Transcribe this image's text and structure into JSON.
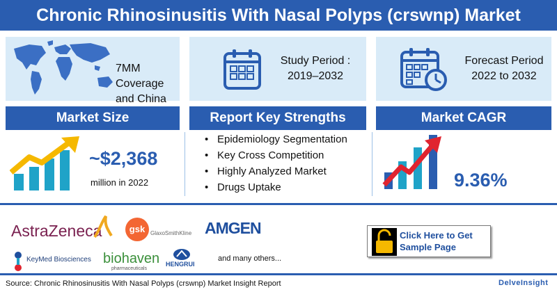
{
  "title": "Chronic Rhinosinusitis With Nasal Polyps (crswnp) Market",
  "coverage": {
    "text": "7MM Coverage and China",
    "icon": "world-map-icon"
  },
  "study_period": {
    "label": "Study Period :",
    "value": "2019–2032",
    "icon": "calendar-icon"
  },
  "forecast_period": {
    "label": "Forecast Period",
    "value": "2022 to 2032",
    "icon": "calendar-clock-icon"
  },
  "market_size": {
    "header": "Market Size",
    "value": "~$2,368",
    "unit": "million in 2022",
    "icon": "growth-chart-icon"
  },
  "key_strengths": {
    "header": "Report Key Strengths",
    "items": [
      "Epidemiology Segmentation",
      "Key Cross Competition",
      "Highly Analyzed Market",
      "Drugs Uptake"
    ]
  },
  "cagr": {
    "header": "Market CAGR",
    "value": "9.36%",
    "icon": "rising-bar-chart-icon"
  },
  "companies": {
    "astrazeneca": "AstraZeneca",
    "gsk_mark": "gsk",
    "gsk_name": "GlaxoSmithKline",
    "amgen": "AMGEN",
    "keymed": "KeyMed Biosciences",
    "biohaven_main": "biohaven",
    "biohaven_sub": "pharmaceuticals",
    "hengrui": "HENGRUI",
    "others": "and many others..."
  },
  "cta": {
    "label": "Click Here to Get Sample Page",
    "icon": "unlock-icon"
  },
  "source": "Source: Chronic Rhinosinusitis With Nasal Polyps (crswnp) Market Insight Report",
  "brand": "DelveInsight",
  "colors": {
    "primary": "#2a5db0",
    "panel": "#d9ebf8",
    "accent_yellow": "#f5b800",
    "accent_red": "#e0242f",
    "teal": "#1fa3c8"
  }
}
